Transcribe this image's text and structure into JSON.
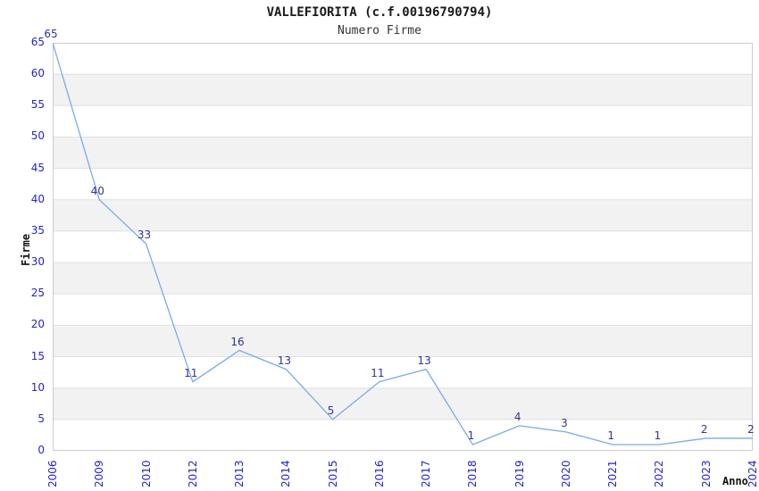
{
  "chart_data": {
    "type": "line",
    "title": "VALLEFIORITA (c.f.00196790794)",
    "subtitle": "Numero Firme",
    "xlabel": "Anno",
    "ylabel": "Firme",
    "categories": [
      "2006",
      "2009",
      "2010",
      "2012",
      "2013",
      "2014",
      "2015",
      "2016",
      "2017",
      "2018",
      "2019",
      "2020",
      "2021",
      "2022",
      "2023",
      "2024"
    ],
    "values": [
      65,
      40,
      33,
      11,
      16,
      13,
      5,
      11,
      13,
      1,
      4,
      3,
      1,
      1,
      2,
      2
    ],
    "series": [
      {
        "name": "Numero Firme",
        "values": [
          65,
          40,
          33,
          11,
          16,
          13,
          5,
          11,
          13,
          1,
          4,
          3,
          1,
          1,
          2,
          2
        ]
      }
    ],
    "ylim": [
      0,
      65
    ],
    "ytick_step": 5,
    "yticks": [
      0,
      5,
      10,
      15,
      20,
      25,
      30,
      35,
      40,
      45,
      50,
      55,
      60,
      65
    ],
    "grid": "horizontal alternating bands",
    "legend_position": "none",
    "data_labels_shown": true,
    "colors": {
      "line": "#7aabe8",
      "data_label": "#333399",
      "tick_label": "#2424cc",
      "band_gray": "#f2f2f2",
      "band_white": "#ffffff",
      "gridline": "#e0e0e0",
      "axis_border": "#cccccc",
      "title": "#1a1a1a"
    }
  }
}
